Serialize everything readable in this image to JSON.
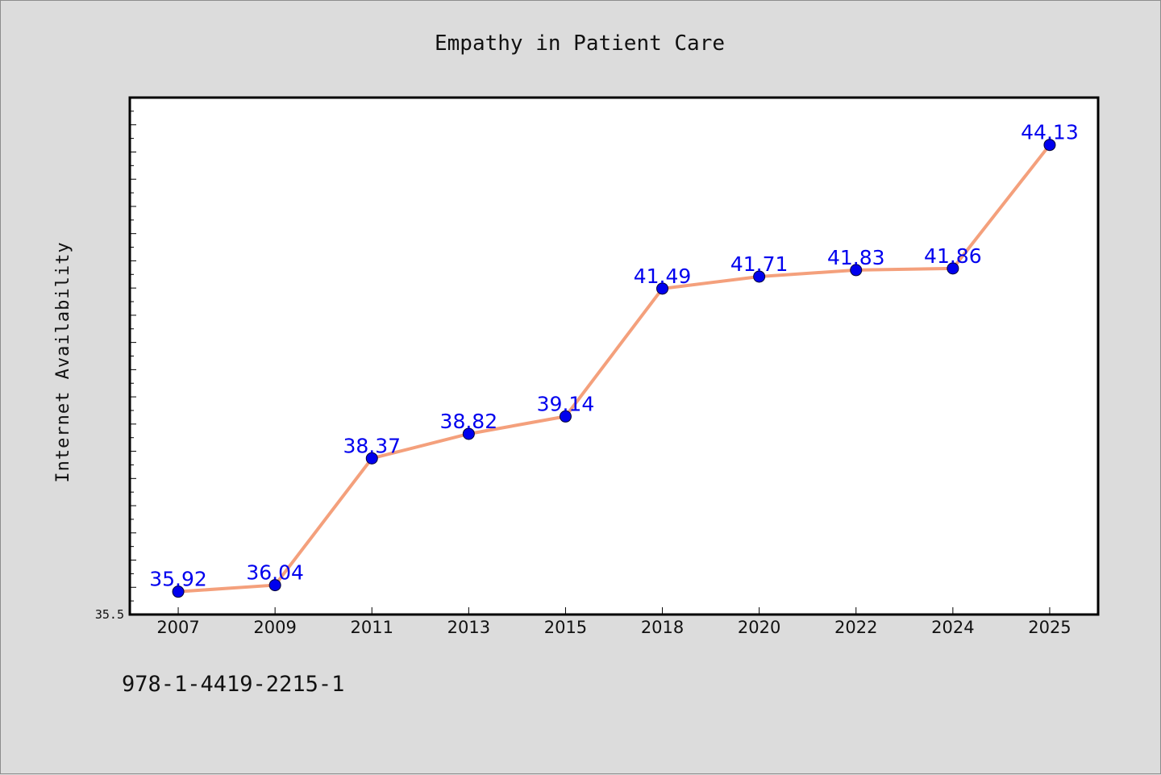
{
  "chart_data": {
    "type": "line",
    "title": "Empathy in Patient Care",
    "xlabel": "",
    "ylabel": "Internet Availability",
    "categories": [
      "2007",
      "2009",
      "2011",
      "2013",
      "2015",
      "2018",
      "2020",
      "2022",
      "2024",
      "2025"
    ],
    "series": [
      {
        "values": [
          35.92,
          36.04,
          38.37,
          38.82,
          39.14,
          41.49,
          41.71,
          41.83,
          41.86,
          44.13
        ],
        "labels": [
          "35.92",
          "36.04",
          "38.37",
          "38.82",
          "39.14",
          "41.49",
          "41.71",
          "41.83",
          "41.86",
          "44.13"
        ],
        "line_color": "#f4a07c",
        "marker_color": "#0000ee"
      }
    ],
    "ylim": [
      35.5,
      45.0
    ],
    "y_tick_labels": [
      "35.5"
    ],
    "grid": false,
    "legend": "none",
    "colors": {
      "background": "#dcdcdc",
      "plot_background": "#ffffff",
      "line": "#f4a07c",
      "marker": "#0000ee",
      "data_label": "#0000ee"
    }
  },
  "footer": {
    "code": "978-1-4419-2215-1"
  }
}
